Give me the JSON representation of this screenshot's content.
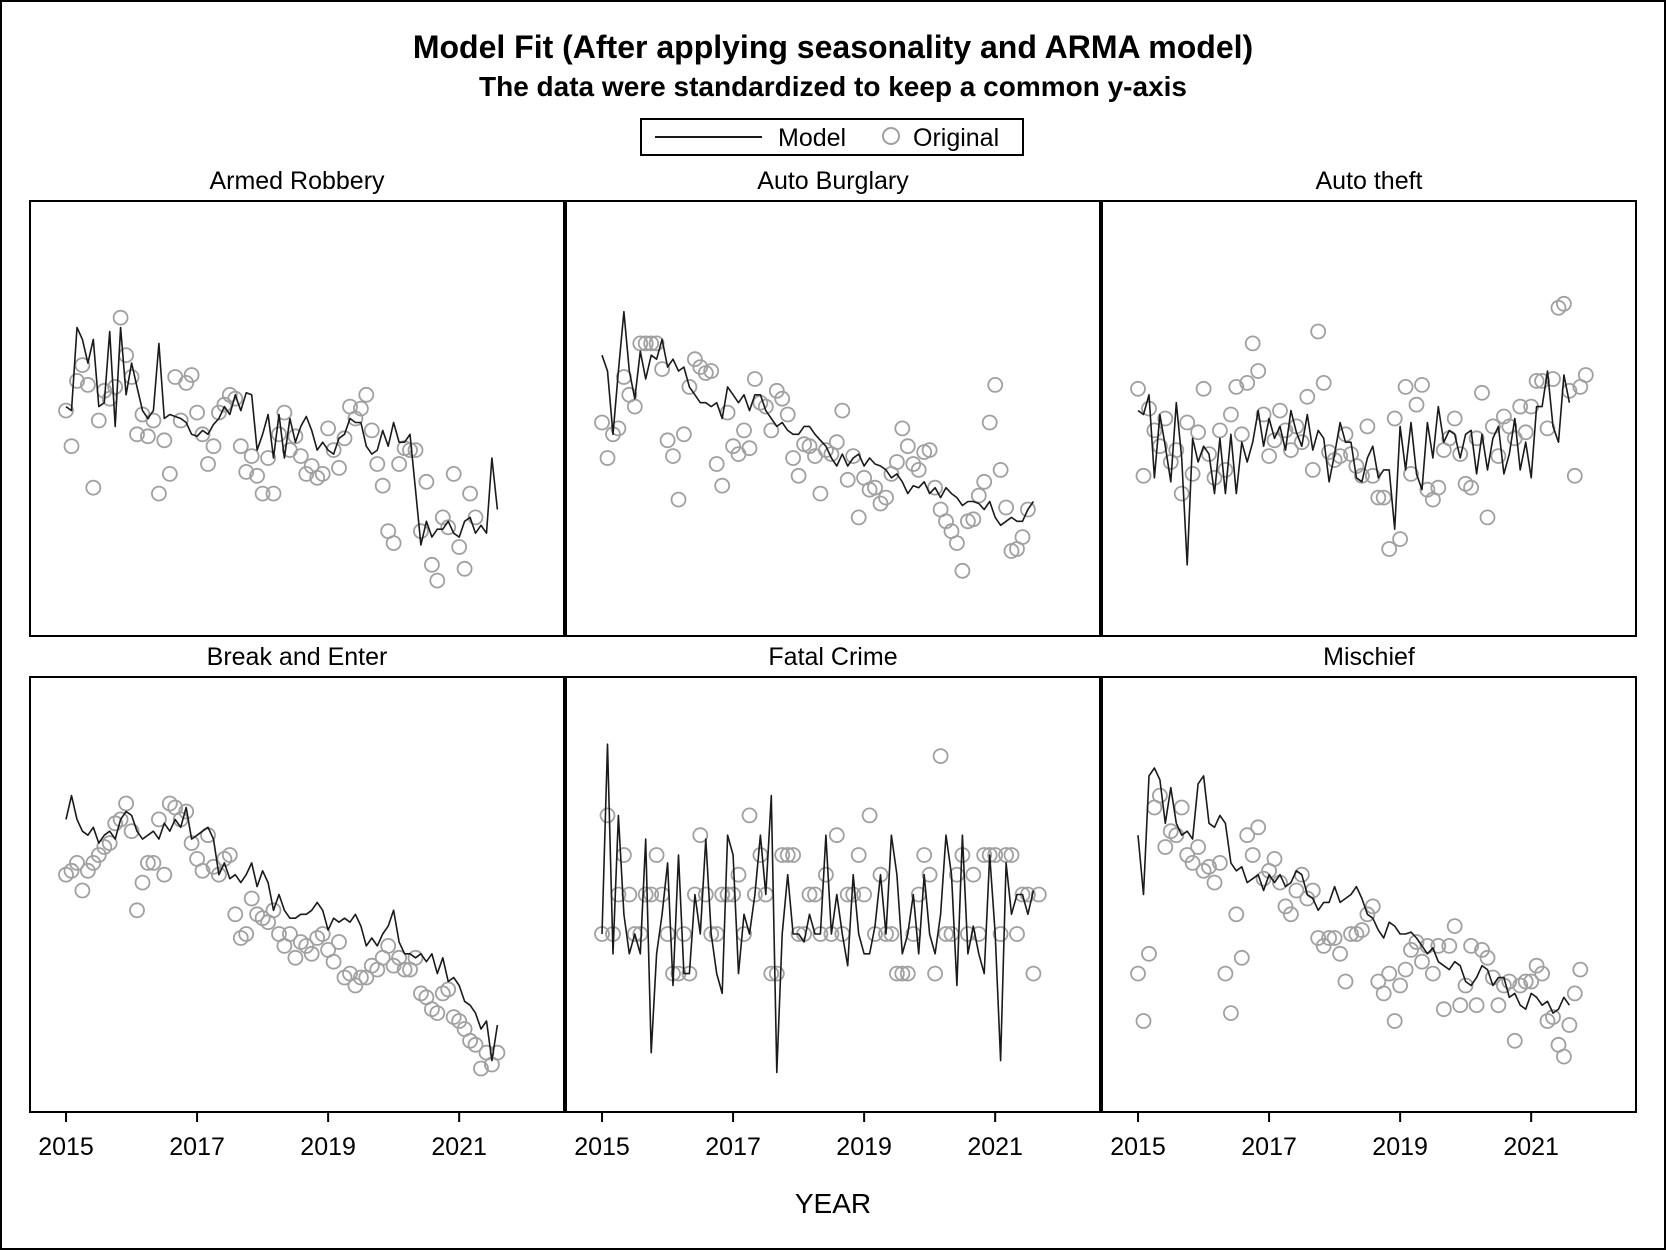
{
  "figure": {
    "title": "Model Fit (After applying seasonality and ARMA model)",
    "subtitle": "The data were standardized to keep a common y-axis",
    "xlabel": "YEAR",
    "legend": {
      "model_label": "Model",
      "original_label": "Original"
    },
    "colors": {
      "model": "#1a1a1a",
      "original": "#a0a0a0",
      "frame": "#000000"
    }
  },
  "chart_data": {
    "type": "line",
    "x_start": 2015.0,
    "x_step": 0.0833333,
    "xlim": [
      2014.45,
      2022.6
    ],
    "ylim": [
      -5.5,
      5.5
    ],
    "xticks": [
      "2015",
      "2017",
      "2019",
      "2021"
    ],
    "panels": [
      {
        "name": "Armed Robbery",
        "model": [
          0.3,
          0.2,
          2.3,
          2.0,
          1.4,
          2.0,
          0.3,
          0.4,
          2.2,
          -0.2,
          2.3,
          0.6,
          1.4,
          0.8,
          0.2,
          0.0,
          0.2,
          1.9,
          0.0,
          0.1,
          0.05,
          0.0,
          -0.1,
          -0.4,
          -0.45,
          -0.3,
          -0.4,
          -0.15,
          0.0,
          0.3,
          0.1,
          0.6,
          0.2,
          0.65,
          0.6,
          -0.8,
          -0.4,
          0.1,
          -1.0,
          0.1,
          -1.0,
          0.0,
          -0.6,
          -0.2,
          0.05,
          -0.3,
          -0.8,
          -0.6,
          -0.8,
          -0.9,
          -0.5,
          -0.4,
          0.0,
          -0.1,
          -0.1,
          -0.7,
          -0.9,
          -0.8,
          -0.3,
          -0.7,
          -0.1,
          -0.6,
          -0.6,
          -0.4,
          -1.8,
          -3.2,
          -2.6,
          -3.0,
          -2.8,
          -2.8,
          -2.6,
          -2.9,
          -3.0,
          -2.6,
          -2.5,
          -2.9,
          -2.7,
          -2.9,
          -1.0,
          -2.3
        ],
        "original": [
          0.2,
          -0.7,
          0.95,
          1.35,
          0.85,
          -1.75,
          -0.05,
          0.7,
          0.5,
          0.8,
          2.55,
          1.6,
          1.05,
          -0.4,
          0.1,
          -0.45,
          -0.05,
          -1.9,
          -0.55,
          -1.4,
          1.05,
          -0.05,
          0.9,
          1.1,
          0.15,
          -0.4,
          -1.15,
          -0.7,
          0.15,
          0.35,
          0.6,
          0.5,
          -0.7,
          -1.35,
          -0.95,
          -1.45,
          -1.9,
          -1.0,
          -1.9,
          -0.4,
          0.15,
          -0.8,
          -0.45,
          -0.95,
          -1.4,
          -1.2,
          -1.5,
          -1.4,
          -0.25,
          -0.8,
          -1.25,
          -0.5,
          0.3,
          0.0,
          0.25,
          0.6,
          -0.3,
          -1.15,
          -1.7,
          -2.85,
          -3.15,
          -1.15,
          -0.75,
          -0.8,
          -0.8,
          -2.85,
          -1.6,
          -3.7,
          -4.1,
          -2.5,
          -2.75,
          -1.4,
          -3.25,
          -3.8,
          -1.9,
          -2.5
        ],
        "original_x0": 2015.0,
        "original_step": 0.0833333,
        "original_x_overrides": {}
      },
      {
        "name": "Auto Burglary",
        "model": [
          1.6,
          1.2,
          -0.4,
          1.2,
          2.7,
          1.2,
          0.5,
          1.7,
          1.0,
          1.6,
          1.5,
          2.0,
          1.3,
          1.5,
          1.2,
          1.3,
          0.8,
          0.6,
          0.4,
          0.4,
          0.3,
          0.4,
          0.0,
          0.8,
          0.6,
          0.4,
          0.6,
          0.2,
          0.6,
          0.6,
          0.2,
          0.0,
          -0.2,
          -0.1,
          -0.3,
          -0.4,
          -0.4,
          -0.2,
          -0.2,
          -0.4,
          -0.55,
          -0.7,
          -1.0,
          -1.2,
          -0.9,
          -1.2,
          -1.0,
          -0.9,
          -1.2,
          -1.0,
          -1.15,
          -1.2,
          -1.3,
          -1.5,
          -1.4,
          -1.6,
          -1.9,
          -1.7,
          -1.75,
          -1.6,
          -1.9,
          -1.75,
          -2.0,
          -1.75,
          -1.9,
          -2.0,
          -2.2,
          -2.1,
          -2.1,
          -2.15,
          -2.3,
          -2.1,
          -2.5,
          -2.7,
          -2.6,
          -2.5,
          -2.6,
          -2.6,
          -2.3,
          -2.1
        ],
        "original": [
          -0.1,
          -1.0,
          -0.4,
          -0.25,
          1.05,
          0.6,
          0.3,
          1.9,
          1.9,
          1.9,
          1.9,
          1.25,
          -0.55,
          -0.95,
          -2.05,
          -0.4,
          0.8,
          1.5,
          1.3,
          1.15,
          1.2,
          -1.15,
          -1.7,
          0.15,
          -0.7,
          -0.9,
          -0.3,
          -0.75,
          1.0,
          0.4,
          0.3,
          -0.3,
          0.7,
          0.5,
          0.1,
          -1.0,
          -1.45,
          -0.65,
          -0.7,
          -0.95,
          -1.9,
          -0.8,
          -0.9,
          -0.6,
          0.2,
          -1.55,
          -0.95,
          -2.5,
          -1.5,
          -1.8,
          -1.75,
          -2.15,
          -2.0,
          -1.4,
          -1.1,
          -0.25,
          -0.7,
          -1.15,
          -1.3,
          -0.85,
          -0.8,
          -1.75,
          -2.3,
          -2.6,
          -2.85,
          -3.15,
          -3.85,
          -2.6,
          -2.55,
          -1.95,
          -1.6,
          -0.1,
          0.85,
          -1.3,
          -2.25,
          -3.35,
          -3.3,
          -3.0,
          -2.3
        ],
        "original_x0": 2015.0,
        "original_step": 0.0833333,
        "original_x_overrides": {}
      },
      {
        "name": "Auto theft",
        "model": [
          0.2,
          0.1,
          0.6,
          -1.5,
          0.1,
          -0.7,
          -1.6,
          0.4,
          -1.0,
          -3.7,
          -0.5,
          -1.1,
          -0.7,
          -0.9,
          -1.9,
          -0.5,
          -1.9,
          -0.4,
          -1.9,
          -0.6,
          -1.1,
          -0.6,
          0.2,
          -0.7,
          0.0,
          -0.5,
          -0.2,
          -0.8,
          0.2,
          -0.35,
          -0.7,
          0.1,
          -0.8,
          -0.3,
          -0.5,
          -1.6,
          -0.9,
          -0.1,
          -0.6,
          -0.6,
          -1.5,
          -1.6,
          -1.0,
          -0.7,
          -1.5,
          -1.3,
          -1.3,
          -2.8,
          -0.2,
          -1.3,
          -0.1,
          -1.4,
          -1.8,
          -0.1,
          -1.0,
          0.3,
          -0.6,
          -0.3,
          -0.4,
          -1.0,
          -0.4,
          -0.3,
          -1.4,
          -0.4,
          -1.3,
          -0.5,
          -0.2,
          -1.4,
          -0.9,
          0.0,
          -1.3,
          -0.6,
          -1.5,
          0.3,
          0.3,
          1.2,
          -0.2,
          -0.6,
          1.1,
          0.4
        ],
        "original": [
          0.75,
          -1.45,
          0.25,
          -0.3,
          -0.7,
          0.0,
          -1.1,
          -0.8,
          -1.9,
          -0.1,
          -1.4,
          -0.35,
          0.75,
          -0.9,
          -1.5,
          -0.3,
          -1.3,
          0.1,
          0.8,
          -0.4,
          0.9,
          1.9,
          1.2,
          0.1,
          -0.95,
          -0.55,
          0.2,
          -0.3,
          -0.8,
          -0.2,
          -0.6,
          0.55,
          -1.3,
          2.2,
          0.9,
          -0.85,
          -1.05,
          -0.95,
          -0.4,
          -0.9,
          -1.2,
          -1.45,
          -0.2,
          -1.45,
          -2.0,
          -2.0,
          -3.3,
          0.0,
          -3.05,
          0.8,
          -1.4,
          0.35,
          0.85,
          -1.8,
          -2.05,
          -1.75,
          -0.8,
          -0.5,
          0.0,
          -0.9,
          -1.65,
          -1.75,
          -0.5,
          0.65,
          -2.5,
          -0.2,
          -0.95,
          0.05,
          -0.2,
          -0.5,
          0.3,
          -0.35,
          0.3,
          0.95,
          0.95,
          -0.25,
          1.0,
          2.8,
          2.9,
          0.7,
          -1.45,
          0.8,
          1.1
        ],
        "original_x0": 2015.0,
        "original_step": 0.0833333,
        "original_x_overrides": {}
      },
      {
        "name": "Break and Enter",
        "model": [
          1.9,
          2.5,
          1.9,
          1.6,
          1.5,
          1.7,
          1.3,
          1.5,
          1.6,
          1.4,
          1.9,
          2.1,
          2.0,
          1.6,
          1.4,
          1.5,
          1.6,
          1.4,
          1.8,
          1.6,
          1.9,
          1.7,
          2.2,
          1.4,
          1.5,
          1.6,
          1.7,
          1.4,
          0.5,
          0.8,
          0.4,
          0.5,
          0.3,
          0.5,
          0.8,
          0.2,
          0.6,
          0.3,
          -0.4,
          0.0,
          -0.4,
          -0.6,
          -0.6,
          -0.5,
          -0.5,
          -0.4,
          -0.2,
          -0.4,
          -0.9,
          -0.6,
          -0.7,
          -0.6,
          -0.7,
          -0.5,
          -0.8,
          -1.3,
          -1.1,
          -1.3,
          -1.0,
          -0.8,
          -0.4,
          -1.2,
          -1.5,
          -1.5,
          -1.6,
          -1.5,
          -1.7,
          -1.5,
          -2.0,
          -1.6,
          -2.2,
          -2.1,
          -2.3,
          -2.7,
          -2.8,
          -3.0,
          -3.4,
          -3.2,
          -4.2,
          -3.3
        ],
        "original": [
          0.5,
          0.6,
          0.8,
          0.1,
          0.6,
          0.8,
          1.0,
          1.2,
          1.3,
          1.8,
          1.9,
          2.3,
          1.6,
          -0.4,
          0.3,
          0.8,
          0.8,
          1.9,
          0.5,
          2.3,
          2.2,
          1.9,
          2.1,
          1.3,
          0.9,
          0.6,
          1.5,
          0.7,
          0.5,
          0.9,
          1.0,
          -0.5,
          -1.1,
          -1.0,
          -0.1,
          -0.5,
          -0.6,
          -0.7,
          -0.4,
          -1.0,
          -1.3,
          -1.0,
          -1.6,
          -1.2,
          -1.3,
          -1.5,
          -1.1,
          -1.0,
          -1.4,
          -1.7,
          -1.2,
          -2.1,
          -2.0,
          -2.3,
          -2.1,
          -2.1,
          -1.8,
          -1.9,
          -1.6,
          -1.3,
          -1.8,
          -1.6,
          -1.9,
          -1.9,
          -1.6,
          -2.5,
          -2.6,
          -2.9,
          -3.0,
          -2.5,
          -2.4,
          -3.1,
          -3.2,
          -3.4,
          -3.7,
          -3.8,
          -4.4,
          -4.0,
          -4.3,
          -4.0
        ],
        "original_x0": 2015.0,
        "original_step": 0.0833333,
        "original_x_overrides": {}
      },
      {
        "name": "Fatal Crime",
        "model": [
          -1.0,
          3.8,
          -1.5,
          2.0,
          -0.5,
          -1.5,
          -1.0,
          -1.5,
          1.4,
          -4.0,
          -1.5,
          -0.5,
          0.8,
          -2.3,
          1.0,
          -2.0,
          -2.0,
          0.0,
          -1.0,
          1.4,
          -1.0,
          -2.0,
          -2.5,
          1.5,
          1.0,
          -2.0,
          -0.5,
          -1.0,
          0.0,
          1.5,
          0.0,
          2.5,
          -4.5,
          -1.0,
          0.5,
          -1.0,
          -1.0,
          -1.2,
          -0.5,
          -1.0,
          -1.0,
          1.5,
          -1.0,
          0.0,
          -1.0,
          -1.8,
          0.5,
          -1.0,
          -1.5,
          -1.5,
          -0.8,
          0.5,
          -1.0,
          1.5,
          0.5,
          -1.5,
          -1.0,
          0.0,
          -1.5,
          0.5,
          -1.0,
          -1.5,
          -0.5,
          1.5,
          0.5,
          -2.3,
          1.5,
          -1.5,
          -0.8,
          -1.5,
          -2.0,
          1.0,
          -1.0,
          -4.2,
          0.8,
          -0.5,
          0.0,
          0.0,
          -0.5,
          0.1
        ],
        "original": [
          -1.0,
          2.0,
          -1.0,
          0.0,
          1.0,
          0.0,
          -1.0,
          -1.0,
          0.0,
          0.0,
          1.0,
          0.0,
          -1.0,
          -2.0,
          -2.0,
          -1.0,
          -2.0,
          0.0,
          1.5,
          0.0,
          -1.0,
          -1.0,
          0.0,
          0.0,
          0.0,
          0.5,
          -1.0,
          2.0,
          0.0,
          1.0,
          0.0,
          -2.0,
          -2.0,
          1.0,
          1.0,
          1.0,
          -1.0,
          -1.0,
          0.0,
          0.0,
          -1.0,
          0.5,
          -1.0,
          1.5,
          -1.0,
          0.0,
          0.0,
          1.0,
          0.0,
          2.0,
          -1.0,
          0.5,
          -1.0,
          -1.0,
          -2.0,
          -2.0,
          -2.0,
          -1.0,
          0.0,
          1.0,
          0.5,
          -2.0,
          3.5,
          -1.0,
          -1.0,
          0.5,
          1.0,
          -1.0,
          0.5,
          -1.0,
          1.0,
          1.0,
          1.0,
          -1.0,
          1.0,
          1.0,
          -1.0,
          0.0,
          0.0,
          -2.0,
          0.0
        ],
        "original_x0": 2015.0,
        "original_step": 0.0833333,
        "original_x_overrides": {}
      },
      {
        "name": "Mischief",
        "model": [
          1.5,
          0.0,
          3.0,
          3.2,
          2.9,
          1.8,
          2.7,
          1.8,
          1.5,
          1.6,
          1.4,
          2.8,
          3.0,
          1.8,
          1.7,
          2.0,
          1.8,
          0.8,
          0.6,
          0.7,
          0.3,
          0.4,
          0.5,
          0.1,
          0.5,
          0.3,
          0.5,
          0.2,
          0.3,
          0.6,
          0.5,
          0.0,
          -0.1,
          -0.4,
          -0.2,
          -0.2,
          0.2,
          -0.2,
          -0.1,
          0.0,
          0.2,
          -0.1,
          -0.5,
          -0.6,
          -0.9,
          -1.1,
          -0.7,
          -0.8,
          -1.0,
          -1.0,
          -0.95,
          -1.1,
          -1.3,
          -1.5,
          -1.35,
          -1.7,
          -1.8,
          -1.9,
          -1.7,
          -1.8,
          -2.2,
          -2.3,
          -2.1,
          -1.8,
          -1.9,
          -2.3,
          -2.1,
          -2.1,
          -2.6,
          -2.5,
          -2.8,
          -2.9,
          -2.5,
          -2.6,
          -2.8,
          -2.7,
          -3.0,
          -2.9,
          -2.6,
          -2.8
        ],
        "original": [
          -2.0,
          -3.2,
          -1.5,
          2.2,
          2.5,
          1.2,
          1.6,
          1.5,
          2.2,
          1.0,
          0.8,
          1.2,
          0.6,
          0.7,
          0.3,
          0.8,
          -2.0,
          -3.0,
          -0.5,
          -1.6,
          1.5,
          1.0,
          1.7,
          0.4,
          0.6,
          0.9,
          0.3,
          -0.3,
          -0.5,
          0.1,
          0.5,
          -0.1,
          0.1,
          -1.1,
          -1.3,
          -1.1,
          -1.1,
          -1.5,
          -2.2,
          -1.0,
          -1.0,
          -0.9,
          -0.5,
          -0.3,
          -2.2,
          -2.5,
          -2.0,
          -3.2,
          -2.3,
          -1.9,
          -1.4,
          -1.2,
          -1.7,
          -1.3,
          -2.0,
          -1.3,
          -2.9,
          -1.3,
          -0.8,
          -2.8,
          -2.3,
          -1.3,
          -2.8,
          -1.4,
          -1.6,
          -2.1,
          -2.8,
          -2.3,
          -2.2,
          -3.7,
          -2.3,
          -2.2,
          -2.2,
          -1.8,
          -2.0,
          -3.2,
          -3.1,
          -3.8,
          -4.1,
          -3.3,
          -2.5,
          -1.9
        ],
        "original_x0": 2015.0,
        "original_step": 0.0833333,
        "original_x_overrides": {}
      }
    ]
  }
}
